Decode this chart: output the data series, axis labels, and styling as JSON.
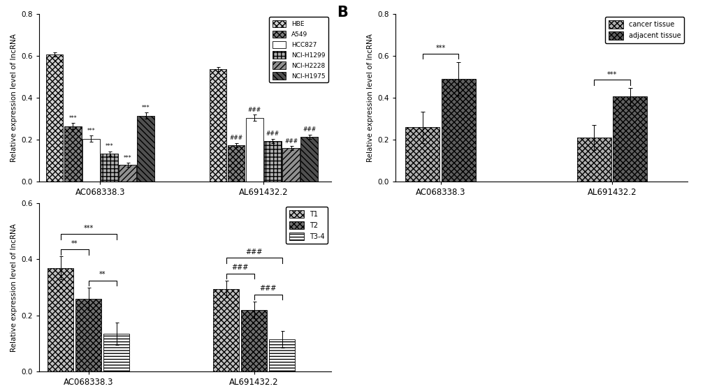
{
  "panelA": {
    "groups": [
      "AC068338.3",
      "AL691432.2"
    ],
    "categories": [
      "HBE",
      "A549",
      "HCC827",
      "NCI-H1299",
      "NCI-H2228",
      "NCI-H1975"
    ],
    "values": [
      [
        0.605,
        0.265,
        0.205,
        0.135,
        0.08,
        0.315
      ],
      [
        0.535,
        0.175,
        0.305,
        0.195,
        0.16,
        0.215
      ]
    ],
    "errors": [
      [
        0.01,
        0.015,
        0.015,
        0.01,
        0.01,
        0.015
      ],
      [
        0.01,
        0.01,
        0.015,
        0.01,
        0.01,
        0.01
      ]
    ],
    "sig_labels_ac": [
      "",
      "***",
      "***",
      "***",
      "***",
      "***"
    ],
    "sig_labels_al": [
      "",
      "###",
      "###",
      "###",
      "###",
      "###"
    ],
    "ylabel": "Relative expression level of lncRNA",
    "ylim": [
      0,
      0.8
    ],
    "yticks": [
      0.0,
      0.2,
      0.4,
      0.6,
      0.8
    ],
    "xlabels": [
      "AC068338.3",
      "AL691432.2"
    ],
    "legend_labels": [
      "HBE",
      "A549",
      "HCC827",
      "NCI-H1299",
      "NCI-H2228",
      "NCI-H1975"
    ]
  },
  "panelB": {
    "groups": [
      "AC068338.3",
      "AL691432.2"
    ],
    "categories": [
      "cancer tissue",
      "adjacent tissue"
    ],
    "values": [
      [
        0.26,
        0.49
      ],
      [
        0.21,
        0.405
      ]
    ],
    "errors": [
      [
        0.075,
        0.08
      ],
      [
        0.06,
        0.04
      ]
    ],
    "ylabel": "Relative expression level of lncRNA",
    "ylim": [
      0,
      0.8
    ],
    "yticks": [
      0.0,
      0.2,
      0.4,
      0.6,
      0.8
    ],
    "xlabels": [
      "AC068338.3",
      "AL691432.2"
    ],
    "legend_labels": [
      "cancer tissue",
      "adjacent tissue"
    ]
  },
  "panelC": {
    "groups": [
      "AC068338.3",
      "AL691432.2"
    ],
    "categories": [
      "T1",
      "T2",
      "T3-4"
    ],
    "values": [
      [
        0.37,
        0.26,
        0.135
      ],
      [
        0.295,
        0.22,
        0.115
      ]
    ],
    "errors": [
      [
        0.04,
        0.04,
        0.04
      ],
      [
        0.03,
        0.03,
        0.03
      ]
    ],
    "ylabel": "Relative expression level of lncRNA",
    "ylim": [
      0,
      0.6
    ],
    "yticks": [
      0.0,
      0.2,
      0.4,
      0.6
    ],
    "xlabels": [
      "AC068338.3",
      "AL691432.2"
    ],
    "legend_labels": [
      "T1",
      "T2",
      "T3-4"
    ]
  },
  "bg_color": "#ffffff"
}
